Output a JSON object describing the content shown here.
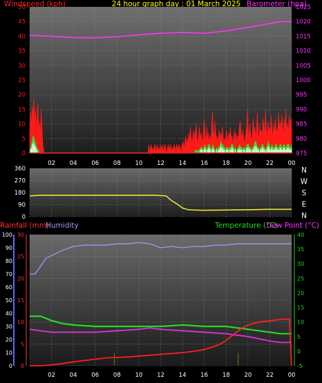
{
  "colors": {
    "background": "#000000",
    "wind": "#ff1a1a",
    "gust": "#33dd33",
    "wind_light": "#ffffff",
    "barometer": "#ff33ff",
    "direction": "#e8e830",
    "rainfall": "#ff2020",
    "humidity": "#9999ff",
    "temperature": "#22dd22",
    "dewpoint": "#dd33dd",
    "title": "#ffff00",
    "axis_text": "#ffffff",
    "rain_axis": "#ff3333",
    "hum_axis": "#6666ff",
    "temp_axis": "#22dd22",
    "dir_axis": "#ffffff",
    "hour_marker": "#ffcc00"
  },
  "header": {
    "title": "24 hour graph day : 01 March 2025",
    "windspeed_label": "Windspeed (kph)",
    "barometer_label": "Barometer (hpa)",
    "rainfall_label": "Rainfall (mm)",
    "humidity_label": "Humidity",
    "temperature_label": "Temperature (°C)",
    "dewpoint_label": "Dew Point (°C)"
  },
  "chart_data": [
    {
      "type": "line",
      "id": "wind-pressure",
      "x_ticks": [
        "02",
        "04",
        "06",
        "08",
        "10",
        "12",
        "14",
        "16",
        "18",
        "20",
        "22",
        "00"
      ],
      "left_axis": {
        "label": "Windspeed (kph)",
        "range": [
          0,
          50
        ],
        "ticks": [
          "50",
          "45",
          "40",
          "35",
          "30",
          "25",
          "20",
          "15",
          "10",
          "5",
          "0"
        ]
      },
      "right_axis": {
        "label": "Barometer (hpa)",
        "range": [
          975,
          1025
        ],
        "ticks": [
          "1025",
          "1020",
          "1015",
          "1010",
          "1005",
          "1000",
          "995",
          "990",
          "985",
          "980",
          "975"
        ]
      },
      "series": [
        {
          "name": "Barometer (hpa)",
          "axis": "right",
          "x": [
            0,
            2,
            4,
            6,
            8,
            10,
            12,
            14,
            16,
            18,
            20,
            22,
            23,
            24
          ],
          "values": [
            1015.3,
            1015.0,
            1014.5,
            1014.4,
            1014.8,
            1015.5,
            1016.0,
            1016.3,
            1016.0,
            1016.8,
            1018.0,
            1019.3,
            1020.0,
            1020.0
          ]
        },
        {
          "name": "Windspeed (kph)",
          "axis": "left",
          "x_start": 0,
          "x_end": 24,
          "values": [
            6,
            14,
            9,
            16,
            12,
            19,
            10,
            15,
            8,
            13,
            17,
            7,
            11,
            6,
            15,
            9,
            3,
            1,
            0,
            0,
            0,
            0,
            0,
            0,
            0,
            0,
            0,
            0,
            0,
            0,
            0,
            0,
            0,
            0,
            0,
            0,
            0,
            0,
            0,
            0,
            0,
            0,
            0,
            0,
            0,
            0,
            0,
            0,
            0,
            0,
            0,
            0,
            0,
            0,
            0,
            0,
            0,
            0,
            0,
            0,
            0,
            0,
            0,
            0,
            0,
            0,
            0,
            0,
            0,
            0,
            0,
            0,
            0,
            0,
            0,
            0,
            0,
            0,
            0,
            0,
            0,
            0,
            0,
            0,
            0,
            0,
            0,
            0,
            0,
            0,
            0,
            0,
            0,
            0,
            0,
            0,
            0,
            0,
            0,
            0,
            0,
            0,
            0,
            0,
            0,
            0,
            0,
            0,
            0,
            0,
            0,
            0,
            0,
            0,
            0,
            0,
            0,
            0,
            0,
            0,
            0,
            0,
            0,
            0,
            0,
            0,
            0,
            0,
            0,
            0,
            0,
            0,
            0,
            0,
            0,
            0,
            0,
            0,
            0,
            0,
            0,
            0,
            0,
            0,
            0,
            0,
            3,
            0,
            2,
            3,
            0,
            2,
            0,
            3,
            2,
            0,
            3,
            1,
            2,
            0,
            3,
            2,
            1,
            3,
            0,
            2,
            3,
            1,
            0,
            2,
            3,
            1,
            2,
            3,
            0,
            2,
            1,
            3,
            2,
            0,
            3,
            2,
            1,
            3,
            2,
            0,
            2,
            3,
            4,
            2,
            3,
            6,
            2,
            5,
            3,
            7,
            4,
            9,
            5,
            3,
            6,
            8,
            4,
            7,
            10,
            5,
            3,
            6,
            9,
            4,
            7,
            5,
            3,
            8,
            12,
            6,
            4,
            9,
            5,
            7,
            3,
            6,
            4,
            9,
            14,
            8,
            5,
            11,
            7,
            4,
            6,
            3,
            8,
            5,
            7,
            4,
            9,
            6,
            3,
            5,
            4,
            8,
            6,
            3,
            7,
            5,
            9,
            4,
            6,
            3,
            5,
            8,
            4,
            7,
            3,
            6,
            5,
            9,
            11,
            7,
            4,
            8,
            6,
            3,
            5,
            7,
            9,
            15,
            8,
            5,
            10,
            6,
            4,
            7,
            12,
            6,
            9,
            5,
            8,
            14,
            7,
            4,
            10,
            6,
            8,
            5,
            12,
            9,
            6,
            15,
            8,
            5,
            11,
            7,
            9,
            6,
            13,
            8,
            5,
            10,
            7,
            12,
            6,
            9,
            5,
            14,
            8,
            11,
            7,
            13,
            9,
            6,
            12,
            8,
            15,
            7,
            10,
            6,
            13,
            9,
            12,
            8
          ]
        },
        {
          "name": "Gust",
          "axis": "left",
          "x_start": 0,
          "x_end": 24,
          "values": [
            1,
            2,
            3,
            5,
            6,
            5,
            4,
            3,
            2,
            1,
            1,
            0,
            0,
            0,
            0,
            0,
            0,
            0,
            0,
            0,
            0,
            0,
            0,
            0,
            0,
            0,
            0,
            0,
            0,
            0,
            0,
            0,
            0,
            0,
            0,
            0,
            0,
            0,
            0,
            0,
            0,
            0,
            0,
            0,
            0,
            0,
            0,
            0,
            0,
            0,
            0,
            0,
            0,
            0,
            0,
            0,
            0,
            0,
            0,
            0,
            0,
            0,
            0,
            0,
            0,
            0,
            0,
            0,
            0,
            0,
            0,
            0,
            0,
            0,
            0,
            0,
            0,
            0,
            0,
            0,
            0,
            0,
            0,
            0,
            0,
            0,
            0,
            0,
            0,
            0,
            0,
            0,
            0,
            0,
            0,
            0,
            0,
            0,
            0,
            0,
            0,
            0,
            0,
            0,
            0,
            0,
            0,
            0,
            0,
            0,
            0,
            0,
            0,
            0,
            0,
            0,
            0,
            0,
            0,
            0,
            0,
            0,
            0,
            0,
            0,
            0,
            0,
            0,
            0,
            0,
            0,
            0,
            0,
            0,
            0,
            0,
            0,
            0,
            0,
            0,
            0,
            0,
            0,
            0,
            0,
            0,
            0,
            0,
            0,
            0,
            0,
            0,
            0,
            0,
            0,
            0,
            0,
            0,
            0,
            0,
            0,
            0,
            0,
            0,
            0,
            0,
            0,
            0,
            0,
            0,
            0,
            0,
            0,
            0,
            0,
            0,
            0,
            0,
            0,
            0,
            0,
            0,
            0,
            0,
            0,
            1,
            1,
            1,
            1,
            1,
            1,
            2,
            2,
            2,
            1,
            2,
            3,
            2,
            1,
            2,
            3,
            3,
            2,
            1,
            2,
            3,
            2,
            1,
            1,
            2,
            1,
            2,
            2,
            3,
            4,
            3,
            3,
            2,
            2,
            1,
            2,
            2,
            2,
            1,
            2,
            2,
            3,
            3,
            2,
            1,
            2,
            1,
            1,
            2,
            2,
            3,
            2,
            2,
            1,
            2,
            2,
            1,
            2,
            3,
            3,
            3,
            2,
            2,
            1,
            2,
            2,
            3,
            4,
            4,
            3,
            2,
            2,
            1,
            2,
            2,
            3,
            3,
            2,
            2,
            1,
            2,
            3,
            4,
            3,
            2,
            2,
            3,
            2,
            2,
            2,
            3,
            3,
            2,
            2,
            2,
            3,
            3,
            2,
            2,
            3,
            3,
            2,
            2,
            3,
            3,
            3,
            2,
            2,
            3
          ]
        }
      ]
    },
    {
      "type": "line",
      "id": "wind-direction",
      "left_axis": {
        "range": [
          0,
          360
        ],
        "ticks": [
          "360",
          "270",
          "180",
          "90",
          "0"
        ]
      },
      "right_axis": {
        "ticks": [
          "N",
          "W",
          "S",
          "E",
          "N"
        ]
      },
      "series": [
        {
          "name": "Wind direction",
          "x": [
            0,
            1,
            2,
            4,
            6,
            8,
            10,
            11.5,
            12.5,
            13,
            13.5,
            14,
            14.5,
            15,
            16,
            18,
            20,
            22,
            24
          ],
          "values": [
            155,
            160,
            160,
            160,
            160,
            160,
            160,
            160,
            155,
            120,
            95,
            65,
            52,
            50,
            48,
            50,
            52,
            55,
            55
          ]
        }
      ]
    },
    {
      "type": "line",
      "id": "rain-humidity-temp",
      "x_ticks": [
        "02",
        "04",
        "06",
        "08",
        "10",
        "12",
        "14",
        "16",
        "18",
        "20",
        "22",
        "00"
      ],
      "left_axis_rain": {
        "label": "Rainfall (mm)",
        "range": [
          0,
          30
        ],
        "ticks": [
          "30",
          "25",
          "20",
          "15",
          "10",
          "5",
          "0"
        ]
      },
      "left_axis_humidity": {
        "label": "Humidity",
        "range": [
          0,
          100
        ],
        "ticks": [
          "100",
          "90",
          "80",
          "70",
          "60",
          "50",
          "40",
          "30",
          "20",
          "10",
          "0"
        ]
      },
      "right_axis": {
        "label": "Temperature (°C) / Dew Point (°C)",
        "range": [
          -5,
          40
        ],
        "ticks": [
          "40",
          "35",
          "30",
          "25",
          "20",
          "15",
          "10",
          "5",
          "0",
          "-5"
        ]
      },
      "hour_markers": [
        7.75,
        19.1
      ],
      "series": [
        {
          "name": "Humidity",
          "axis": "humidity",
          "x": [
            0,
            0.5,
            1,
            1.5,
            2,
            3,
            4,
            5,
            6,
            7,
            8,
            9,
            10,
            11,
            12,
            13,
            14,
            15,
            16,
            17,
            18,
            19,
            20,
            21,
            22,
            23,
            24
          ],
          "values": [
            70,
            70,
            76,
            82,
            84,
            88,
            91,
            92,
            92,
            92,
            93,
            93,
            94,
            93,
            90,
            91,
            90,
            91,
            91,
            92,
            92,
            93,
            93,
            93,
            93,
            93,
            93
          ]
        },
        {
          "name": "Rainfall (mm)",
          "axis": "rain",
          "x": [
            0,
            1,
            2,
            3,
            4,
            5,
            6,
            7,
            8,
            9,
            10,
            11,
            12,
            13,
            14,
            15,
            16,
            17,
            17.5,
            18,
            18.5,
            19,
            19.5,
            20,
            21,
            22,
            23,
            23.8,
            24
          ],
          "values": [
            0,
            0,
            0.2,
            0.5,
            0.9,
            1.2,
            1.5,
            1.8,
            1.9,
            2.0,
            2.2,
            2.4,
            2.6,
            2.8,
            3.0,
            3.3,
            3.7,
            4.5,
            5.0,
            5.8,
            6.8,
            7.8,
            8.7,
            9.3,
            10.0,
            10.3,
            10.6,
            10.7,
            0
          ]
        },
        {
          "name": "Temperature (°C)",
          "axis": "temp",
          "x": [
            0,
            1,
            2,
            3,
            4,
            6,
            8,
            10,
            12,
            14,
            16,
            18,
            20,
            22,
            23,
            24
          ],
          "values": [
            12,
            12,
            10.5,
            9.5,
            9,
            8.5,
            8.5,
            8.5,
            8.5,
            9,
            8.5,
            8.5,
            7.5,
            6.5,
            6,
            6
          ]
        },
        {
          "name": "Dew Point (°C)",
          "axis": "temp",
          "x": [
            0,
            1,
            2,
            4,
            6,
            8,
            10,
            11,
            12,
            14,
            16,
            18,
            20,
            22,
            23,
            24
          ],
          "values": [
            7.5,
            7,
            6.5,
            6.5,
            6.5,
            7,
            7.5,
            8,
            7.5,
            7,
            6.5,
            6,
            5,
            3.5,
            3,
            3
          ]
        }
      ]
    }
  ]
}
